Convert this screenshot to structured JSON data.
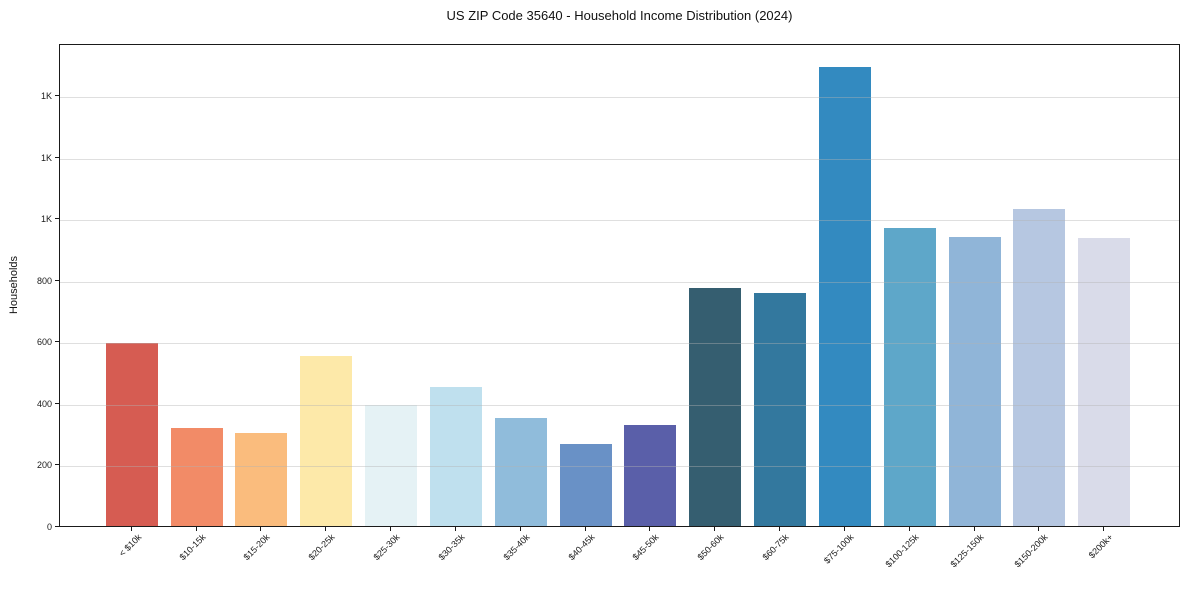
{
  "chart_data": {
    "type": "bar",
    "title": "US ZIP Code 35640 - Household Income Distribution (2024)",
    "xlabel": "",
    "ylabel": "Households",
    "categories": [
      "< $10k",
      "$10-15k",
      "$15-20k",
      "$20-25k",
      "$25-30k",
      "$30-35k",
      "$35-40k",
      "$40-45k",
      "$45-50k",
      "$50-60k",
      "$60-75k",
      "$75-100k",
      "$100-125k",
      "$125-150k",
      "$150-200k",
      "$200k+"
    ],
    "values": [
      595,
      320,
      303,
      553,
      394,
      452,
      352,
      268,
      329,
      772,
      756,
      1492,
      968,
      940,
      1029,
      936
    ],
    "bar_colors": [
      "#d65c52",
      "#f28b67",
      "#fabc7d",
      "#fde9a9",
      "#e5f2f5",
      "#bfe0ee",
      "#90bcdb",
      "#6991c6",
      "#5a5fa9",
      "#355e70",
      "#33789e",
      "#338ac0",
      "#5ea7c9",
      "#90b5d8",
      "#b6c7e1",
      "#d9dbe9"
    ],
    "ylim": [
      0,
      1570
    ],
    "yticks": [
      {
        "value": 0,
        "label": "0"
      },
      {
        "value": 200,
        "label": "200"
      },
      {
        "value": 400,
        "label": "400"
      },
      {
        "value": 600,
        "label": "600"
      },
      {
        "value": 800,
        "label": "800"
      },
      {
        "value": 1000,
        "label": "1K"
      },
      {
        "value": 1200,
        "label": "1K"
      },
      {
        "value": 1400,
        "label": "1K"
      }
    ],
    "grid": "horizontal",
    "legend": "none"
  }
}
